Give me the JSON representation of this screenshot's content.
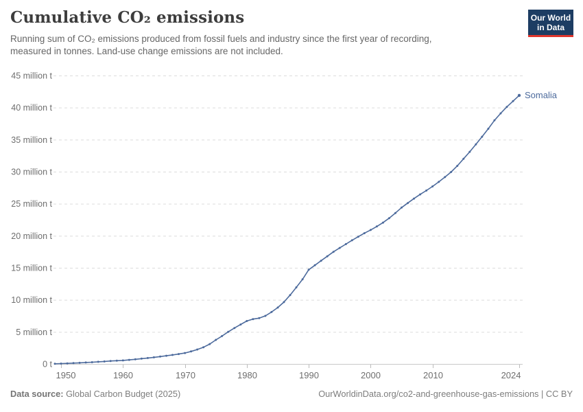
{
  "header": {
    "title": "Cumulative CO₂ emissions",
    "subtitle_line1": "Running sum of CO₂ emissions produced from fossil fuels and industry since the first year of recording,",
    "subtitle_line2": "measured in tonnes. Land-use change emissions are not included.",
    "logo_line1": "Our World",
    "logo_line2": "in Data"
  },
  "footer": {
    "source_label": "Data source:",
    "source_value": "Global Carbon Budget (2025)",
    "right_text": "OurWorldinData.org/co2-and-greenhouse-gas-emissions | CC BY"
  },
  "colors": {
    "line": "#4c6a9c",
    "entity_label": "#4c6a9c",
    "grid": "#dcdcdc",
    "axis": "#c8c8c8",
    "tick": "#bbbbbb",
    "axis_text": "#6e6e6e",
    "logo_bg": "#1d3d63",
    "logo_underline": "#e0362c"
  },
  "chart_data": {
    "type": "line",
    "title": "Cumulative CO₂ emissions",
    "entity_label": "Somalia",
    "ylabel": "",
    "xlabel": "",
    "unit": "tonnes",
    "ylim": [
      0,
      45
    ],
    "xlim": [
      1949,
      2024
    ],
    "grid": "dashed-horizontal",
    "legend_position": "end-of-line",
    "y_tick_values": [
      0,
      5,
      10,
      15,
      20,
      25,
      30,
      35,
      40,
      45
    ],
    "y_tick_labels": [
      "0 t",
      "5 million t",
      "10 million t",
      "15 million t",
      "20 million t",
      "25 million t",
      "30 million t",
      "35 million t",
      "40 million t",
      "45 million t"
    ],
    "x_tick_values": [
      1950,
      1960,
      1970,
      1980,
      1990,
      2000,
      2010,
      2024
    ],
    "x_tick_labels": [
      "1950",
      "1960",
      "1970",
      "1980",
      "1990",
      "2000",
      "2010",
      "2024"
    ],
    "series": [
      {
        "name": "Somalia",
        "color": "#4c6a9c",
        "x_start": 1949,
        "x_step": 1,
        "values_million_t": [
          0.02,
          0.05,
          0.09,
          0.13,
          0.17,
          0.22,
          0.27,
          0.33,
          0.39,
          0.46,
          0.5,
          0.55,
          0.63,
          0.72,
          0.82,
          0.92,
          1.03,
          1.15,
          1.27,
          1.4,
          1.54,
          1.7,
          1.95,
          2.25,
          2.6,
          3.1,
          3.75,
          4.35,
          5.0,
          5.6,
          6.15,
          6.7,
          7.0,
          7.15,
          7.5,
          8.1,
          8.8,
          9.65,
          10.75,
          11.95,
          13.2,
          14.7,
          15.4,
          16.1,
          16.8,
          17.5,
          18.1,
          18.7,
          19.3,
          19.85,
          20.4,
          20.9,
          21.45,
          22.05,
          22.75,
          23.55,
          24.4,
          25.1,
          25.8,
          26.45,
          27.05,
          27.7,
          28.4,
          29.15,
          29.95,
          30.9,
          32.0,
          33.1,
          34.25,
          35.45,
          36.7,
          38.0,
          39.1,
          40.1,
          41.0,
          41.9
        ]
      }
    ]
  }
}
